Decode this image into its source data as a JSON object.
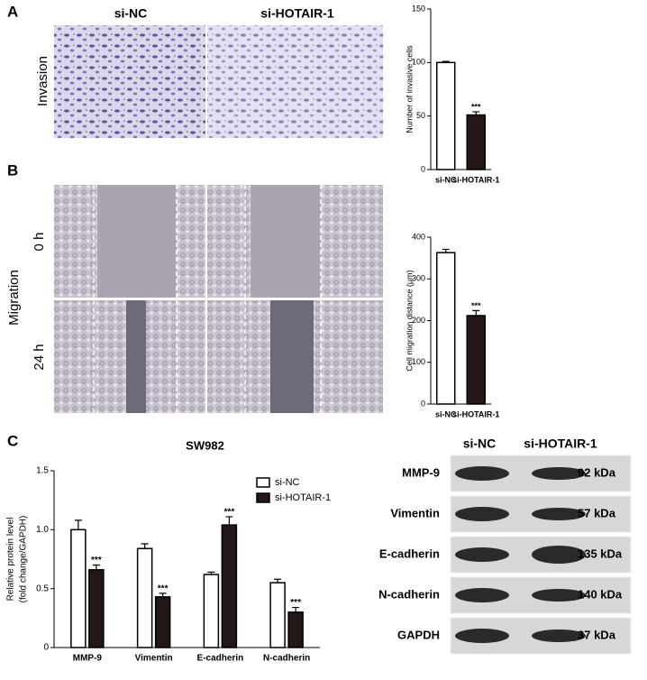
{
  "figure": {
    "panel_labels": [
      "A",
      "B",
      "C"
    ],
    "columns": [
      "si-NC",
      "si-HOTAIR-1"
    ],
    "invasion": "Invasion",
    "migration": "Migration",
    "times": [
      "0 h",
      "24 h"
    ],
    "blot": {
      "columns": [
        "si-NC",
        "si-HOTAIR-1"
      ],
      "rows": [
        {
          "protein": "MMP-9",
          "size": "92 kDa"
        },
        {
          "protein": "Vimentin",
          "size": "57 kDa"
        },
        {
          "protein": "E-cadherin",
          "size": "135 kDa"
        },
        {
          "protein": "N-cadherin",
          "size": "140 kDa"
        },
        {
          "protein": "GAPDH",
          "size": "37 kDa"
        }
      ]
    }
  },
  "chart_data": [
    {
      "type": "bar",
      "ylabel": [
        "Number of invasive cells"
      ],
      "categories": [
        "si-NC",
        "si-HOTAIR-1"
      ],
      "values": [
        100,
        51
      ],
      "errors": [
        1,
        3
      ],
      "colors": [
        "#ffffff",
        "#231815"
      ],
      "annotations": [
        null,
        "***"
      ],
      "ylim": [
        0,
        150
      ],
      "yticks": [
        0,
        50,
        100,
        150
      ]
    },
    {
      "type": "bar",
      "ylabel": [
        "Cell migration distance (μm)"
      ],
      "categories": [
        "si-NC",
        "si-HOTAIR-1"
      ],
      "values": [
        363,
        212
      ],
      "errors": [
        8,
        12
      ],
      "colors": [
        "#ffffff",
        "#231815"
      ],
      "annotations": [
        null,
        "***"
      ],
      "ylim": [
        0,
        400
      ],
      "yticks": [
        0,
        100,
        200,
        300,
        400
      ]
    },
    {
      "type": "bar",
      "title": "SW982",
      "ylabel": [
        "Relative protein  level",
        "(fold change/GAPDH)"
      ],
      "categories": [
        "MMP-9",
        "Vimentin",
        "E-cadherin",
        "N-cadherin"
      ],
      "series": [
        {
          "name": "si-NC",
          "color": "#ffffff",
          "values": [
            1.0,
            0.84,
            0.62,
            0.55
          ],
          "errors": [
            0.08,
            0.04,
            0.02,
            0.03
          ],
          "annotations": [
            null,
            null,
            null,
            null
          ]
        },
        {
          "name": "si-HOTAIR-1",
          "color": "#231815",
          "values": [
            0.66,
            0.43,
            1.04,
            0.3
          ],
          "errors": [
            0.04,
            0.03,
            0.07,
            0.04
          ],
          "annotations": [
            "***",
            "***",
            "***",
            "***"
          ]
        }
      ],
      "ylim": [
        0,
        1.5
      ],
      "yticks": [
        0,
        0.5,
        {
          "value": 1,
          "label": "1.0"
        },
        1.5
      ]
    }
  ]
}
